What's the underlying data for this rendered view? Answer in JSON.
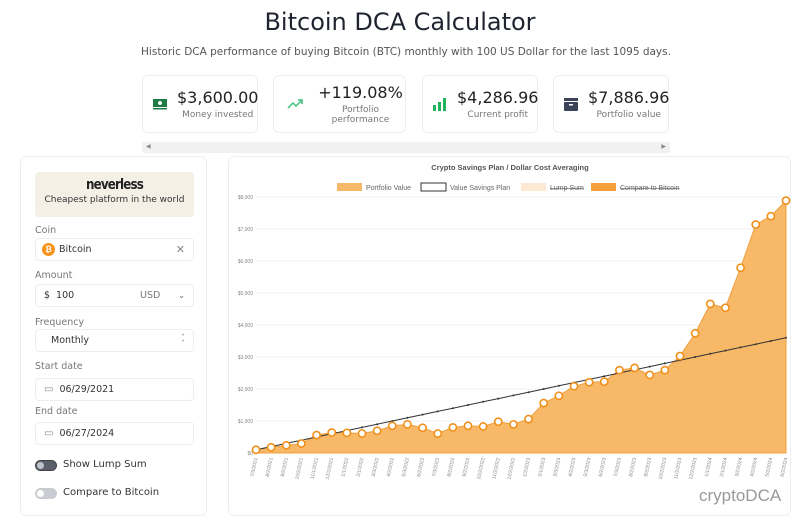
{
  "header": {
    "title": "Bitcoin DCA Calculator",
    "subtitle": "Historic DCA performance of buying Bitcoin (BTC) monthly with 100 US Dollar for the last 1095 days."
  },
  "stats": [
    {
      "value": "$3,600.00",
      "label": "Money invested",
      "icon": "money-icon",
      "color": "#1e7a46"
    },
    {
      "value": "+119.08%",
      "label": "Portfolio performance",
      "icon": "trending-up-icon",
      "color": "#3cc07a"
    },
    {
      "value": "$4,286.96",
      "label": "Current profit",
      "icon": "bar-chart-icon",
      "color": "#22b35a"
    },
    {
      "value": "$7,886.96",
      "label": "Portfolio value",
      "icon": "wallet-icon",
      "color": "#3b4358"
    }
  ],
  "sidebar": {
    "brand": "neverless",
    "tagline": "Cheapest platform in the world",
    "coin_label": "Coin",
    "coin_value": "Bitcoin",
    "amount_label": "Amount",
    "currency_symbol": "$",
    "amount_value": "100",
    "currency": "USD",
    "frequency_label": "Frequency",
    "frequency_value": "Monthly",
    "start_label": "Start date",
    "start_value": "06/29/2021",
    "end_label": "End date",
    "end_value": "06/27/2024",
    "lump_sum_label": "Show Lump Sum",
    "lump_sum_on": true,
    "compare_label": "Compare to Bitcoin",
    "compare_on": false
  },
  "chart_data": {
    "type": "area",
    "title": "Crypto Savings Plan / Dollar Cost Averaging",
    "watermark": "cryptoDCA",
    "legend": [
      {
        "name": "Portfolio Value",
        "color": "#f7b868"
      },
      {
        "name": "Value Savings Plan",
        "color": "#333333"
      },
      {
        "name": "Lump Sum",
        "color": "#fde9d2",
        "hidden": true
      },
      {
        "name": "Compare to Bitcoin",
        "color": "#f6a03c",
        "hidden": true
      }
    ],
    "legend_position": "top",
    "ylim": [
      0,
      8000
    ],
    "yticks": [
      "$0",
      "$1,000",
      "$2,000",
      "$3,000",
      "$4,000",
      "$5,000",
      "$6,000",
      "$7,000",
      "$8,000"
    ],
    "x": [
      "7/3/2021",
      "8/2/2021",
      "9/2/2021",
      "10/2/2021",
      "11/1/2021",
      "12/2/2021",
      "1/1/2022",
      "2/1/2022",
      "3/3/2022",
      "4/2/2022",
      "5/3/2022",
      "6/2/2022",
      "7/3/2022",
      "8/2/2022",
      "9/2/2022",
      "10/2/2022",
      "11/2/2022",
      "12/2/2022",
      "1/2/2023",
      "2/1/2023",
      "3/3/2023",
      "4/2/2023",
      "5/3/2023",
      "6/2/2023",
      "7/3/2023",
      "8/2/2023",
      "9/2/2023",
      "10/2/2023",
      "11/2/2023",
      "12/2/2023",
      "1/1/2024",
      "2/1/2024",
      "3/2/2024",
      "4/2/2024",
      "5/2/2024",
      "6/2/2024"
    ],
    "series": [
      {
        "name": "Portfolio Value",
        "values": [
          100,
          180,
          240,
          295,
          560,
          640,
          630,
          610,
          695,
          850,
          895,
          790,
          610,
          800,
          850,
          830,
          980,
          895,
          1060,
          1560,
          1790,
          2085,
          2210,
          2230,
          2590,
          2660,
          2440,
          2590,
          3030,
          3740,
          4660,
          4540,
          5790,
          7140,
          7400,
          7887
        ]
      },
      {
        "name": "Value Savings Plan",
        "values": [
          100,
          200,
          300,
          400,
          500,
          600,
          700,
          800,
          900,
          1000,
          1100,
          1200,
          1300,
          1400,
          1500,
          1600,
          1700,
          1800,
          1900,
          2000,
          2100,
          2200,
          2300,
          2400,
          2500,
          2600,
          2700,
          2800,
          2900,
          3000,
          3100,
          3200,
          3300,
          3400,
          3500,
          3600
        ]
      }
    ]
  }
}
